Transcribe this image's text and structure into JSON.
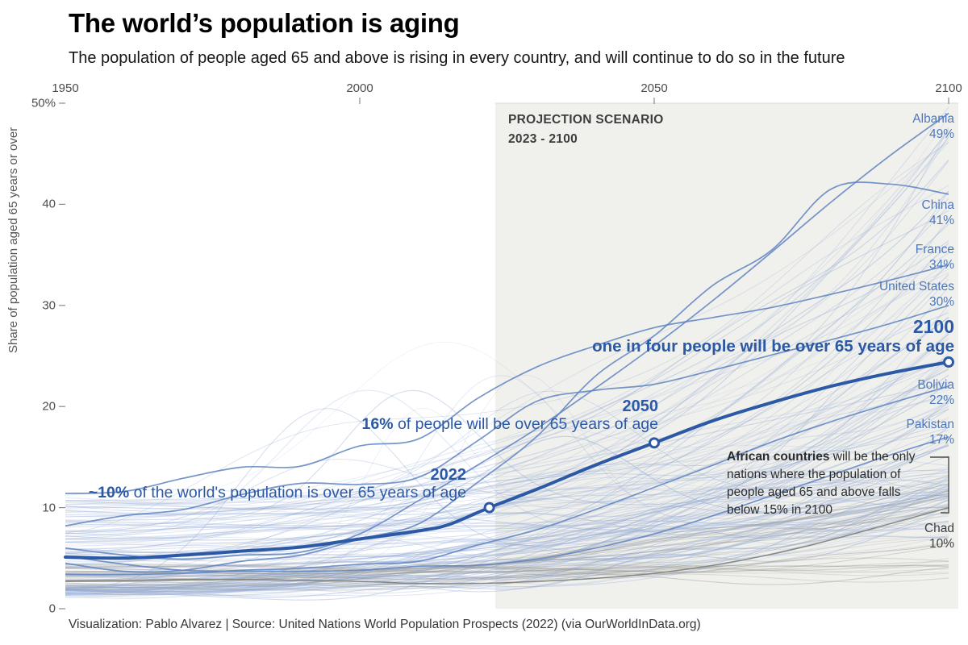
{
  "header": {
    "title": "The world’s population is aging",
    "subtitle": "The population of people aged 65 and above is rising in every country, and will continue to do so in the future"
  },
  "footer": {
    "credit": "Visualization: Pablo Alvarez | Source: United Nations World Population Prospects (2022) (via OurWorldInData.org)"
  },
  "colors": {
    "line_blue": "#2b59a5",
    "label_blue": "#4d78bb",
    "bg_line_blue": "#93aad4",
    "bg_line_gray": "#8f8f88",
    "labeled_line_blue": "#5d82c1",
    "labeled_line_gray": "#83837a",
    "projection_fill": "#f0f0ed",
    "axis_text": "#4d4d4d",
    "note_text": "#2b2b2b",
    "tick_stroke": "#8a8a8a"
  },
  "chart_data": {
    "type": "line",
    "title": "The world’s population is aging",
    "xlabel": "",
    "ylabel": "Share of population aged 65 years or over",
    "xlim": [
      1950,
      2100
    ],
    "ylim": [
      0,
      50
    ],
    "grid": false,
    "legend": "labels at right edge of lines",
    "x_ticks": [
      {
        "label": "1950",
        "year": 1950,
        "show_tick": false
      },
      {
        "label": "2000",
        "year": 2000,
        "show_tick": true
      },
      {
        "label": "2050",
        "year": 2050,
        "show_tick": true
      },
      {
        "label": "2100",
        "year": 2100,
        "show_tick": true
      }
    ],
    "y_ticks": [
      {
        "label": "0",
        "value": 0
      },
      {
        "label": "10",
        "value": 10
      },
      {
        "label": "20",
        "value": 20
      },
      {
        "label": "30",
        "value": 30
      },
      {
        "label": "40",
        "value": 40
      },
      {
        "label": "50%",
        "value": 50
      }
    ],
    "projection": {
      "label_line1": "PROJECTION SCENARIO",
      "label_line2": "2023 - 2100",
      "start_year": 2023,
      "end_year": 2100
    },
    "x_years": [
      1950,
      1960,
      1970,
      1980,
      1990,
      2000,
      2010,
      2020,
      2030,
      2040,
      2050,
      2060,
      2070,
      2080,
      2090,
      2100
    ],
    "world": {
      "name": "World",
      "x": [
        1950,
        1960,
        1970,
        1980,
        1990,
        2000,
        2010,
        2015,
        2022,
        2030,
        2040,
        2050,
        2060,
        2070,
        2080,
        2090,
        2100
      ],
      "values": [
        5.1,
        5.0,
        5.3,
        5.7,
        6.1,
        6.9,
        7.7,
        8.3,
        10.0,
        11.8,
        14.2,
        16.4,
        18.6,
        20.4,
        22.0,
        23.3,
        24.4
      ],
      "markers": [
        {
          "year": 2022,
          "value": 10.0,
          "year_label": "2022",
          "text_bold": "~10%",
          "text_rest": " of the world's population is over 65 years of age"
        },
        {
          "year": 2050,
          "value": 16.4,
          "year_label": "2050",
          "text_bold": "16%",
          "text_rest": " of people will be over 65 years of age"
        },
        {
          "year": 2100,
          "value": 24.4,
          "year_label": "2100",
          "text_bold": "one in four people will be over 65 years of age",
          "text_rest": ""
        }
      ]
    },
    "series": [
      {
        "name": "Albania",
        "end_label": "49%",
        "color_group": "blue",
        "values": [
          6.0,
          5.3,
          4.9,
          5.3,
          5.6,
          7.4,
          10.7,
          14.2,
          17.8,
          21.8,
          26.0,
          30.5,
          35.3,
          40.2,
          44.8,
          49.0
        ]
      },
      {
        "name": "China",
        "end_label": "41%",
        "color_group": "blue",
        "values": [
          4.5,
          3.7,
          3.8,
          4.7,
          5.3,
          6.9,
          8.4,
          12.5,
          17.0,
          23.0,
          27.0,
          32.0,
          35.5,
          41.5,
          42.0,
          41.0
        ]
      },
      {
        "name": "France",
        "end_label": "34%",
        "color_group": "blue",
        "values": [
          11.4,
          11.6,
          12.9,
          14.0,
          14.1,
          16.1,
          16.8,
          20.8,
          23.9,
          26.0,
          27.8,
          28.8,
          29.8,
          31.1,
          32.5,
          34.0
        ]
      },
      {
        "name": "United States",
        "end_label": "30%",
        "color_group": "blue",
        "values": [
          8.2,
          9.2,
          9.8,
          11.3,
          12.4,
          12.3,
          13.0,
          16.6,
          20.5,
          21.6,
          22.2,
          23.6,
          25.1,
          26.6,
          28.2,
          30.0
        ]
      },
      {
        "name": "Bolivia",
        "end_label": "22%",
        "color_group": "blue",
        "values": [
          3.4,
          3.4,
          3.5,
          3.8,
          4.0,
          4.4,
          4.7,
          6.3,
          7.8,
          9.8,
          12.0,
          14.2,
          16.5,
          18.5,
          20.3,
          22.0
        ]
      },
      {
        "name": "Pakistan",
        "end_label": "17%",
        "color_group": "blue",
        "values": [
          5.2,
          4.4,
          3.8,
          3.7,
          3.7,
          3.8,
          4.2,
          4.3,
          4.9,
          6.0,
          7.4,
          9.2,
          11.2,
          13.2,
          15.2,
          17.0
        ]
      },
      {
        "name": "Chad",
        "end_label": "10%",
        "color_group": "gray",
        "values": [
          2.7,
          2.8,
          2.9,
          2.9,
          2.8,
          2.7,
          2.5,
          2.5,
          2.7,
          3.0,
          3.5,
          4.3,
          5.4,
          6.8,
          8.4,
          10.0
        ]
      }
    ],
    "annotation_africa": {
      "bold": "African countries",
      "line1_rest": " will be the only",
      "line2": "nations where the population of",
      "line3": "people aged 65 and above falls",
      "line4": "below 15% in 2100"
    },
    "background": {
      "note": "unlabeled country lines (all countries), blue = world, gray = African countries ending below 15%",
      "blue_lines": 155,
      "gray_lines": 30,
      "seed": 20240614
    }
  }
}
